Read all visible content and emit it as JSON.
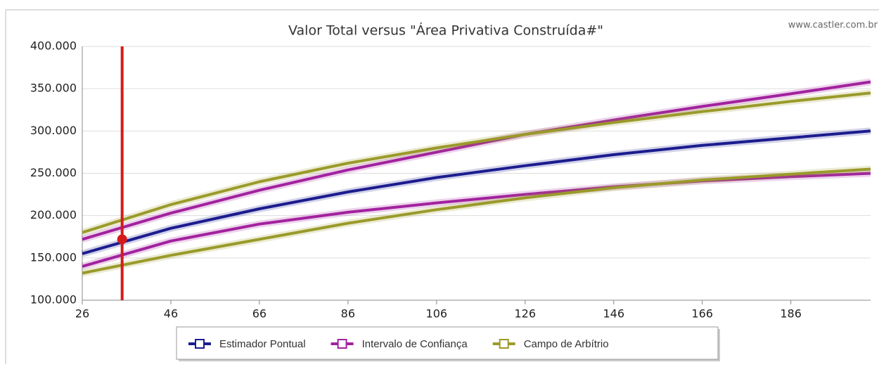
{
  "chart_data": {
    "type": "line",
    "title": "Valor Total versus \"Área Privativa Construída#\"",
    "watermark": "www.castler.com.br",
    "x": [
      26,
      46,
      66,
      86,
      106,
      126,
      146,
      166,
      186,
      204
    ],
    "series": [
      {
        "name": "Estimador Pontual",
        "color": "#1c1c8f",
        "values": [
          155000,
          185000,
          208000,
          228000,
          245000,
          259000,
          272000,
          283000,
          292000,
          300000
        ]
      },
      {
        "name": "Intervalo de Confiança",
        "color": "#a2229e",
        "upper": [
          172000,
          203000,
          230000,
          254000,
          275000,
          296000,
          313000,
          329000,
          344000,
          358000
        ],
        "lower": [
          140000,
          170000,
          190000,
          204000,
          215000,
          225000,
          234000,
          241000,
          246000,
          250000
        ]
      },
      {
        "name": "Campo de Arbítrio",
        "color": "#9a9a2a",
        "upper": [
          180000,
          213000,
          240000,
          262000,
          280000,
          296000,
          310000,
          323000,
          335000,
          345000
        ],
        "lower": [
          132000,
          153000,
          172000,
          191000,
          207000,
          221000,
          233000,
          242000,
          249000,
          255000
        ]
      }
    ],
    "marker": {
      "x": 35,
      "y": 172000,
      "color": "#d41b1b"
    },
    "xlim": [
      26,
      204
    ],
    "ylim": [
      100000,
      400000
    ],
    "xticks": [
      26,
      46,
      66,
      86,
      106,
      126,
      146,
      166,
      186
    ],
    "yticks": [
      {
        "value": 100000,
        "label": "100.000"
      },
      {
        "value": 150000,
        "label": "150.000"
      },
      {
        "value": 200000,
        "label": "200.000"
      },
      {
        "value": 250000,
        "label": "250.000"
      },
      {
        "value": 300000,
        "label": "300.000"
      },
      {
        "value": 350000,
        "label": "350.000"
      },
      {
        "value": 400000,
        "label": "400.000"
      }
    ],
    "grid": true,
    "legend": "bottom"
  }
}
